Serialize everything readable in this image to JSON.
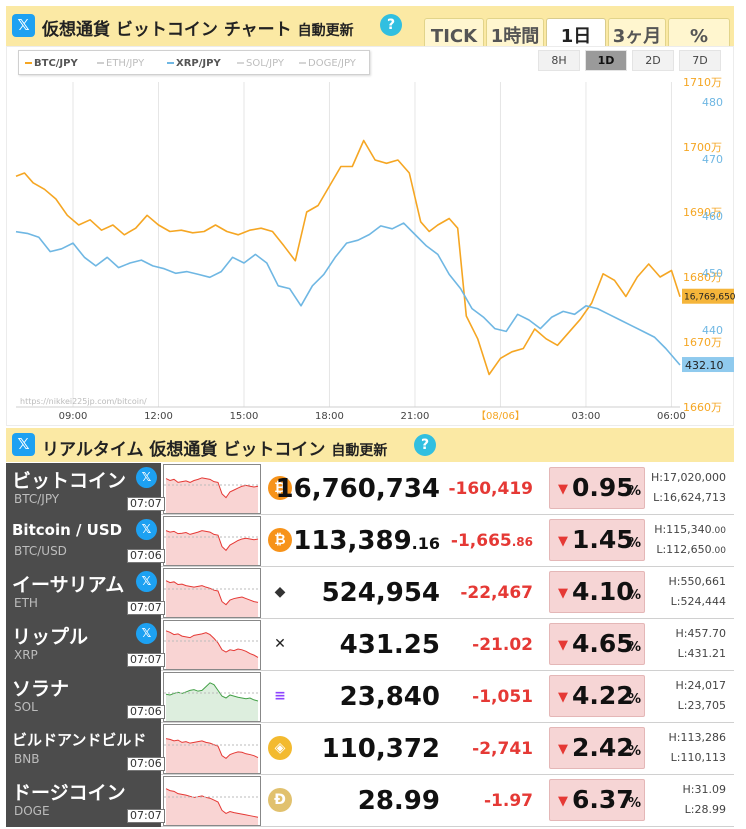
{
  "chart_header": {
    "title": "仮想通貨 ビットコイン チャート",
    "auto_update": "自動更新",
    "help": "?",
    "x_logo": "𝕏",
    "range_tabs": [
      "TICK",
      "1時間",
      "1日",
      "3ヶ月",
      "%"
    ],
    "active_range": "1日"
  },
  "period_buttons": [
    "8H",
    "1D",
    "2D",
    "7D"
  ],
  "active_period": "1D",
  "copyright": "https://nikkei225jp.com/bitcoin/",
  "chart_data": {
    "type": "line",
    "legend": [
      {
        "name": "BTC/JPY",
        "active": true,
        "color": "#f5a623"
      },
      {
        "name": "ETH/JPY",
        "active": false,
        "color": "#cfcfcf"
      },
      {
        "name": "XRP/JPY",
        "active": true,
        "color": "#6fb7e3"
      },
      {
        "name": "SOL/JPY",
        "active": false,
        "color": "#d6d6d6"
      },
      {
        "name": "DOGE/JPY",
        "active": false,
        "color": "#d6d6d6"
      }
    ],
    "x_tick_labels": [
      "09:00",
      "12:00",
      "15:00",
      "18:00",
      "21:00",
      "【08/06】",
      "03:00",
      "06:00"
    ],
    "x_range": [
      0,
      23.3
    ],
    "x_ticks": [
      2,
      5,
      8,
      11,
      14,
      17,
      20,
      23
    ],
    "y_left_ticks": [
      "1710万",
      "1700万",
      "1690万",
      "1680万",
      "1670万",
      "1660万"
    ],
    "y_left_values": [
      17100000,
      17000000,
      16900000,
      16800000,
      16700000,
      16600000
    ],
    "y_left_range": [
      16600000,
      17100000
    ],
    "y_right_ticks": [
      "480",
      "470",
      "460",
      "450",
      "440"
    ],
    "y_right_values": [
      480,
      470,
      460,
      450,
      440
    ],
    "y_right_range": [
      430,
      480
    ],
    "last_btc_label": "16,769,650",
    "last_xrp_label": "432.10",
    "grid": "vertical",
    "series": [
      {
        "name": "BTC/JPY",
        "color": "#f5a623",
        "x": [
          0,
          0.3,
          0.6,
          1.0,
          1.4,
          1.8,
          2.2,
          2.6,
          3.0,
          3.4,
          3.8,
          4.2,
          4.6,
          5.0,
          5.4,
          5.8,
          6.2,
          6.6,
          7.0,
          7.4,
          7.8,
          8.2,
          8.6,
          9.0,
          9.4,
          9.8,
          10.2,
          10.6,
          11.0,
          11.4,
          11.8,
          12.2,
          12.6,
          13.0,
          13.4,
          13.8,
          14.2,
          14.5,
          14.8,
          15.2,
          15.5,
          15.8,
          16.2,
          16.6,
          17.0,
          17.4,
          17.8,
          18.2,
          18.6,
          19.0,
          19.4,
          19.8,
          20.2,
          20.6,
          21.0,
          21.4,
          21.8,
          22.2,
          22.6,
          23.0,
          23.3
        ],
        "values": [
          16955000,
          16960000,
          16945000,
          16935000,
          16920000,
          16895000,
          16880000,
          16888000,
          16872000,
          16880000,
          16865000,
          16875000,
          16895000,
          16880000,
          16870000,
          16872000,
          16868000,
          16870000,
          16880000,
          16870000,
          16865000,
          16872000,
          16875000,
          16870000,
          16848000,
          16825000,
          16900000,
          16910000,
          16940000,
          16970000,
          16970000,
          17010000,
          16980000,
          16975000,
          16980000,
          16960000,
          16885000,
          16870000,
          16880000,
          16890000,
          16875000,
          16740000,
          16705000,
          16650000,
          16675000,
          16685000,
          16690000,
          16720000,
          16705000,
          16695000,
          16715000,
          16735000,
          16760000,
          16805000,
          16795000,
          16770000,
          16800000,
          16820000,
          16800000,
          16810000,
          16769650
        ]
      },
      {
        "name": "XRP/JPY",
        "color": "#6fb7e3",
        "x": [
          0,
          0.4,
          0.8,
          1.2,
          1.6,
          2.0,
          2.4,
          2.8,
          3.2,
          3.6,
          4.0,
          4.4,
          4.8,
          5.2,
          5.6,
          6.0,
          6.4,
          6.8,
          7.2,
          7.6,
          8.0,
          8.4,
          8.8,
          9.2,
          9.6,
          10.0,
          10.4,
          10.8,
          11.2,
          11.6,
          12.0,
          12.4,
          12.8,
          13.2,
          13.6,
          14.0,
          14.4,
          14.8,
          15.2,
          15.6,
          16.0,
          16.4,
          16.8,
          17.2,
          17.6,
          18.0,
          18.4,
          18.8,
          19.2,
          19.6,
          20.0,
          20.4,
          20.8,
          21.2,
          21.6,
          22.0,
          22.4,
          22.8,
          23.3
        ],
        "values": [
          455.5,
          455.2,
          454.5,
          452.0,
          452.5,
          453.5,
          451.0,
          449.5,
          451.0,
          449.2,
          450.0,
          450.5,
          449.5,
          449.0,
          448.2,
          448.5,
          448.0,
          447.5,
          448.5,
          451.0,
          450.0,
          451.5,
          450.0,
          446.0,
          445.5,
          442.5,
          446.0,
          448.0,
          451.0,
          453.5,
          454.0,
          455.0,
          456.5,
          456.0,
          457.0,
          455.0,
          453.0,
          451.5,
          448.0,
          445.5,
          442.0,
          440.5,
          438.5,
          438.0,
          441.0,
          440.0,
          438.5,
          440.5,
          441.5,
          441.0,
          442.5,
          442.0,
          441.0,
          440.0,
          439.0,
          438.0,
          437.0,
          435.0,
          432.1
        ]
      }
    ]
  },
  "realtime_header": {
    "title": "リアルタイム 仮想通貨 ビットコイン",
    "auto_update": "自動更新",
    "help": "?",
    "x_logo": "𝕏"
  },
  "rows": [
    {
      "name": "ビットコイン",
      "pair": "BTC/JPY",
      "time": "07:07",
      "icon": "bitcoin-icon",
      "icon_glyph": "₿",
      "icon_bg": "#f7931a",
      "icon_fg": "#ffffff",
      "price": "16,760,734",
      "price_dec": "",
      "change": "-160,419",
      "change_dec": "",
      "pct": "0.95",
      "pct_sign": "%",
      "arrow": "▼",
      "high": "H:17,020,000",
      "high_dec": "",
      "low": "L:16,624,713",
      "low_dec": "",
      "x": "𝕏",
      "spark_color": "#e53935",
      "spark": [
        0.2,
        0.25,
        0.22,
        0.3,
        0.28,
        0.26,
        0.3,
        0.25,
        0.22,
        0.18,
        0.2,
        0.22,
        0.28,
        0.3,
        0.6,
        0.7,
        0.55,
        0.5,
        0.45,
        0.4,
        0.38,
        0.4,
        0.42,
        0.4
      ]
    },
    {
      "name": "Bitcoin / USD",
      "pair": "BTC/USD",
      "time": "07:06",
      "icon": "bitcoin-icon",
      "icon_glyph": "₿",
      "icon_bg": "#f7931a",
      "icon_fg": "#ffffff",
      "price": "113,389",
      "price_dec": ".16",
      "change": "-1,665",
      "change_dec": ".86",
      "pct": "1.45",
      "pct_sign": "%",
      "arrow": "▼",
      "high": "H:115,340",
      "high_dec": ".00",
      "low": "L:112,650",
      "low_dec": ".00",
      "x": "𝕏",
      "spark_color": "#e53935",
      "spark": [
        0.2,
        0.24,
        0.22,
        0.28,
        0.27,
        0.25,
        0.3,
        0.27,
        0.24,
        0.2,
        0.22,
        0.24,
        0.3,
        0.32,
        0.62,
        0.72,
        0.58,
        0.52,
        0.46,
        0.42,
        0.4,
        0.42,
        0.44,
        0.42
      ]
    },
    {
      "name": "イーサリアム",
      "pair": "ETH",
      "time": "07:07",
      "icon": "ethereum-icon",
      "icon_glyph": "◆",
      "icon_bg": "#ffffff",
      "icon_fg": "#333333",
      "price": "524,954",
      "price_dec": "",
      "change": "-22,467",
      "change_dec": "",
      "pct": "4.10",
      "pct_sign": "%",
      "arrow": "▼",
      "high": "H:550,661",
      "high_dec": "",
      "low": "L:524,444",
      "low_dec": "",
      "x": "𝕏",
      "spark_color": "#e53935",
      "spark": [
        0.15,
        0.2,
        0.18,
        0.25,
        0.24,
        0.28,
        0.3,
        0.32,
        0.3,
        0.28,
        0.32,
        0.35,
        0.4,
        0.42,
        0.7,
        0.78,
        0.66,
        0.62,
        0.6,
        0.58,
        0.62,
        0.66,
        0.7,
        0.72
      ]
    },
    {
      "name": "リップル",
      "pair": "XRP",
      "time": "07:07",
      "icon": "xrp-icon",
      "icon_glyph": "✕",
      "icon_bg": "#ffffff",
      "icon_fg": "#222222",
      "price": "431.25",
      "price_dec": "",
      "change": "-21.02",
      "change_dec": "",
      "pct": "4.65",
      "pct_sign": "%",
      "arrow": "▼",
      "high": "H:457.70",
      "high_dec": "",
      "low": "L:431.21",
      "low_dec": "",
      "x": "𝕏",
      "spark_color": "#e53935",
      "spark": [
        0.1,
        0.14,
        0.2,
        0.18,
        0.24,
        0.26,
        0.28,
        0.22,
        0.2,
        0.18,
        0.15,
        0.2,
        0.3,
        0.42,
        0.6,
        0.66,
        0.6,
        0.62,
        0.58,
        0.6,
        0.64,
        0.7,
        0.74,
        0.8
      ]
    },
    {
      "name": "ソラナ",
      "pair": "SOL",
      "time": "07:06",
      "icon": "solana-icon",
      "icon_glyph": "≡",
      "icon_bg": "#ffffff",
      "icon_fg": "#8e44ff",
      "price": "23,840",
      "price_dec": "",
      "change": "-1,051",
      "change_dec": "",
      "pct": "4.22",
      "pct_sign": "%",
      "arrow": "▼",
      "high": "H:24,017",
      "high_dec": "",
      "low": "L:23,705",
      "low_dec": "",
      "x": "",
      "spark_color": "#43a047",
      "spark": [
        0.4,
        0.42,
        0.38,
        0.35,
        0.38,
        0.34,
        0.3,
        0.28,
        0.32,
        0.3,
        0.2,
        0.1,
        0.15,
        0.3,
        0.45,
        0.5,
        0.42,
        0.45,
        0.48,
        0.5,
        0.52,
        0.5,
        0.55,
        0.58
      ]
    },
    {
      "name": "ビルドアンドビルド",
      "pair": "BNB",
      "time": "07:06",
      "icon": "bnb-icon",
      "icon_glyph": "◈",
      "icon_bg": "#f3ba2f",
      "icon_fg": "#ffffff",
      "price": "110,372",
      "price_dec": "",
      "change": "-2,741",
      "change_dec": "",
      "pct": "2.42",
      "pct_sign": "%",
      "arrow": "▼",
      "high": "H:113,286",
      "high_dec": "",
      "low": "L:110,113",
      "low_dec": "",
      "x": "",
      "spark_color": "#e53935",
      "spark": [
        0.2,
        0.22,
        0.26,
        0.24,
        0.3,
        0.28,
        0.32,
        0.3,
        0.28,
        0.26,
        0.3,
        0.32,
        0.36,
        0.4,
        0.65,
        0.72,
        0.62,
        0.58,
        0.55,
        0.56,
        0.6,
        0.62,
        0.65,
        0.7
      ]
    },
    {
      "name": "ドージコイン",
      "pair": "DOGE",
      "time": "07:07",
      "icon": "dogecoin-icon",
      "icon_glyph": "Ð",
      "icon_bg": "#e1c16e",
      "icon_fg": "#ffffff",
      "price": "28.99",
      "price_dec": "",
      "change": "-1.97",
      "change_dec": "",
      "pct": "6.37",
      "pct_sign": "%",
      "arrow": "▼",
      "high": "H:31.09",
      "high_dec": "",
      "low": "L:28.99",
      "low_dec": "",
      "x": "",
      "spark_color": "#e53935",
      "spark": [
        0.15,
        0.2,
        0.22,
        0.28,
        0.3,
        0.32,
        0.35,
        0.38,
        0.36,
        0.34,
        0.38,
        0.4,
        0.45,
        0.5,
        0.72,
        0.8,
        0.75,
        0.78,
        0.8,
        0.82,
        0.84,
        0.86,
        0.88,
        0.9
      ]
    }
  ]
}
